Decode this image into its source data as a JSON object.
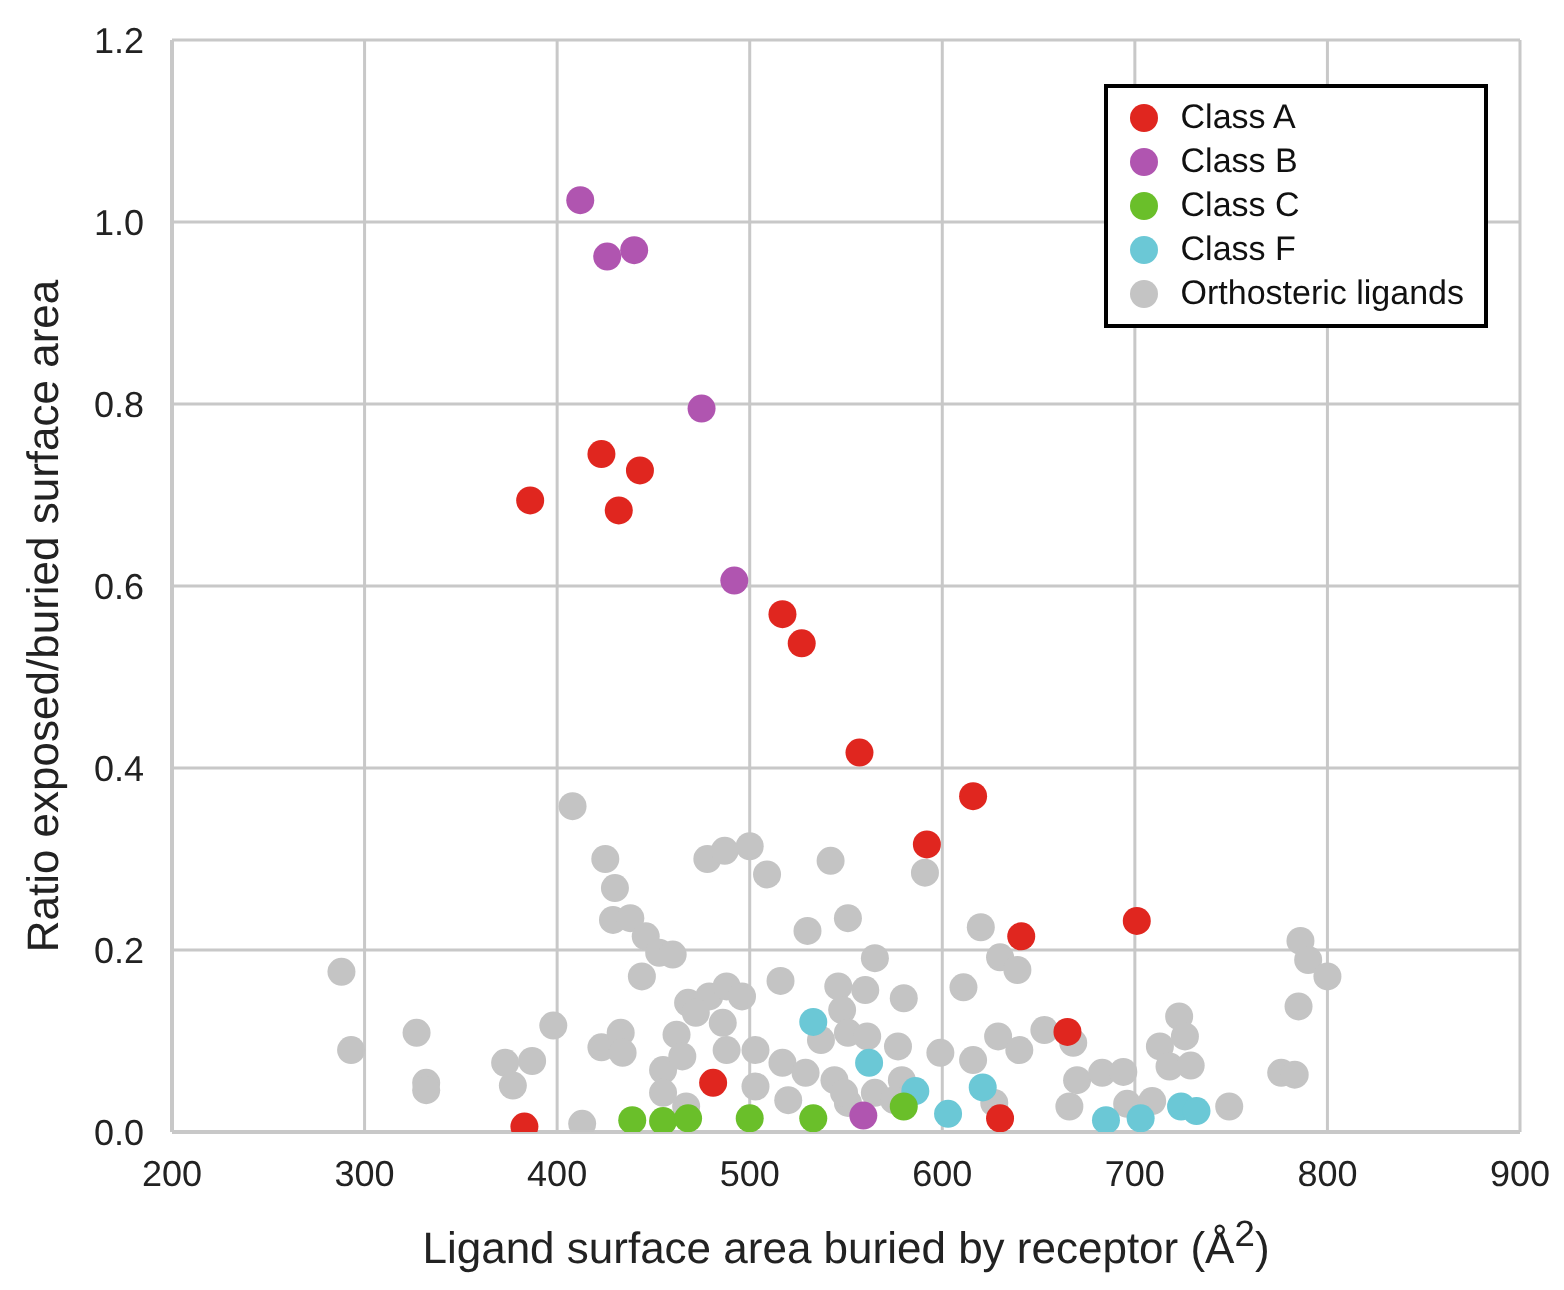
{
  "chart_data": {
    "type": "scatter",
    "xlabel": "Ligand surface area buried by receptor (Å$^{2}$)",
    "ylabel": "Ratio exposed/buried surface area",
    "xlim": [
      200,
      900
    ],
    "xticks": [
      200,
      300,
      400,
      500,
      600,
      700,
      800,
      900
    ],
    "ylim": [
      0,
      1.2
    ],
    "yticks": [
      {
        "value": 0,
        "label": "0.0"
      },
      {
        "value": 0.2,
        "label": "0.2"
      },
      {
        "value": 0.4,
        "label": "0.4"
      },
      {
        "value": 0.6,
        "label": "0.6"
      },
      {
        "value": 0.8,
        "label": "0.8"
      },
      {
        "value": 1,
        "label": "1.0"
      },
      {
        "value": 1.2,
        "label": "1.2"
      }
    ],
    "grid": true,
    "legend": "top right",
    "marker": "circle",
    "series": [
      {
        "name": "Class A",
        "color": "#e0261f",
        "x": [
          386,
          423,
          443,
          432,
          517,
          527,
          557,
          616,
          592,
          641,
          701,
          665,
          630,
          481,
          383
        ],
        "values": [
          0.694,
          0.745,
          0.727,
          0.683,
          0.569,
          0.537,
          0.417,
          0.369,
          0.316,
          0.215,
          0.232,
          0.11,
          0.015,
          0.054,
          0.006
        ]
      },
      {
        "name": "Class B",
        "color": "#b055b0",
        "x": [
          412,
          426,
          440,
          475,
          492,
          559
        ],
        "values": [
          1.024,
          0.962,
          0.969,
          0.795,
          0.606,
          0.018
        ]
      },
      {
        "name": "Class C",
        "color": "#6abf2a",
        "x": [
          439,
          455,
          468,
          500,
          533,
          580
        ],
        "values": [
          0.013,
          0.012,
          0.015,
          0.015,
          0.015,
          0.028
        ]
      },
      {
        "name": "Class F",
        "color": "#6bc8d6",
        "x": [
          533,
          562,
          586,
          603,
          621,
          685,
          703,
          724,
          732
        ],
        "values": [
          0.121,
          0.076,
          0.045,
          0.02,
          0.049,
          0.013,
          0.015,
          0.028,
          0.023
        ]
      },
      {
        "name": "Orthosteric ligands",
        "color": "#c4c4c4",
        "x": [
          408,
          425,
          430,
          429,
          438,
          446,
          453,
          460,
          444,
          478,
          487,
          500,
          509,
          542,
          530,
          551,
          288,
          293,
          327,
          332,
          332,
          373,
          387,
          377,
          398,
          413,
          423,
          433,
          434,
          462,
          468,
          479,
          488,
          496,
          516,
          546,
          486,
          503,
          517,
          529,
          455,
          465,
          488,
          455,
          467,
          503,
          520,
          537,
          544,
          551,
          472,
          591,
          620,
          630,
          639,
          565,
          611,
          580,
          560,
          548,
          551,
          561,
          577,
          599,
          616,
          629,
          640,
          653,
          668,
          670,
          666,
          683,
          694,
          696,
          709,
          713,
          718,
          723,
          726,
          729,
          749,
          776,
          783,
          786,
          790,
          800,
          785,
          579,
          565,
          549,
          575,
          627
        ],
        "values": [
          0.358,
          0.3,
          0.268,
          0.233,
          0.235,
          0.215,
          0.197,
          0.195,
          0.171,
          0.3,
          0.309,
          0.314,
          0.283,
          0.298,
          0.221,
          0.235,
          0.176,
          0.09,
          0.109,
          0.054,
          0.046,
          0.076,
          0.078,
          0.051,
          0.117,
          0.009,
          0.093,
          0.109,
          0.087,
          0.107,
          0.142,
          0.149,
          0.16,
          0.149,
          0.166,
          0.16,
          0.12,
          0.09,
          0.076,
          0.065,
          0.068,
          0.083,
          0.09,
          0.043,
          0.028,
          0.05,
          0.035,
          0.101,
          0.057,
          0.032,
          0.131,
          0.285,
          0.225,
          0.192,
          0.178,
          0.191,
          0.159,
          0.147,
          0.156,
          0.134,
          0.109,
          0.105,
          0.094,
          0.087,
          0.079,
          0.105,
          0.09,
          0.112,
          0.098,
          0.057,
          0.028,
          0.065,
          0.066,
          0.031,
          0.034,
          0.094,
          0.072,
          0.127,
          0.105,
          0.073,
          0.028,
          0.065,
          0.063,
          0.21,
          0.189,
          0.171,
          0.138,
          0.057,
          0.043,
          0.043,
          0.035,
          0.032
        ]
      }
    ]
  }
}
